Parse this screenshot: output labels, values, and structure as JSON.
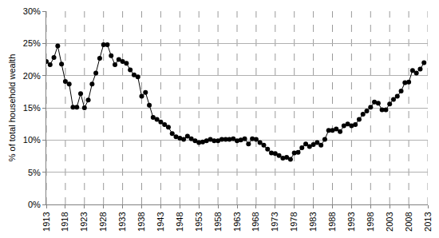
{
  "chart_data": {
    "type": "line",
    "y_label": "% of total household wealth",
    "x": [
      1913,
      1914,
      1915,
      1916,
      1917,
      1918,
      1919,
      1920,
      1921,
      1922,
      1923,
      1924,
      1925,
      1926,
      1927,
      1928,
      1929,
      1930,
      1931,
      1932,
      1933,
      1934,
      1935,
      1936,
      1937,
      1938,
      1939,
      1940,
      1941,
      1942,
      1943,
      1944,
      1945,
      1946,
      1947,
      1948,
      1949,
      1950,
      1951,
      1952,
      1953,
      1954,
      1955,
      1956,
      1957,
      1958,
      1959,
      1960,
      1961,
      1962,
      1963,
      1964,
      1965,
      1966,
      1967,
      1968,
      1969,
      1970,
      1971,
      1972,
      1973,
      1974,
      1975,
      1976,
      1977,
      1978,
      1979,
      1980,
      1981,
      1982,
      1983,
      1984,
      1985,
      1986,
      1987,
      1988,
      1989,
      1990,
      1991,
      1992,
      1993,
      1994,
      1995,
      1996,
      1997,
      1998,
      1999,
      2000,
      2001,
      2002,
      2003,
      2004,
      2005,
      2006,
      2007,
      2008,
      2009,
      2010,
      2011,
      2012
    ],
    "values": [
      22.2,
      21.7,
      22.8,
      24.6,
      21.8,
      19.1,
      18.7,
      15.1,
      15.1,
      17.2,
      15.0,
      16.2,
      18.7,
      20.4,
      22.7,
      24.8,
      24.8,
      23.1,
      21.7,
      22.5,
      22.2,
      21.9,
      20.9,
      20.1,
      19.8,
      16.8,
      17.4,
      15.4,
      13.5,
      13.2,
      12.8,
      12.4,
      12.0,
      11.0,
      10.5,
      10.3,
      10.1,
      10.6,
      10.2,
      9.9,
      9.6,
      9.7,
      9.9,
      10.1,
      9.9,
      9.9,
      10.1,
      10.1,
      10.1,
      10.2,
      9.9,
      10.0,
      10.2,
      9.4,
      10.2,
      10.1,
      9.6,
      9.2,
      8.6,
      8.0,
      7.9,
      7.6,
      7.2,
      7.3,
      7.0,
      8.0,
      8.1,
      8.8,
      9.4,
      9.0,
      9.3,
      9.6,
      9.2,
      10.1,
      11.5,
      11.5,
      11.7,
      11.3,
      12.2,
      12.5,
      12.2,
      12.4,
      13.2,
      14.0,
      14.5,
      15.1,
      15.9,
      15.7,
      14.7,
      14.7,
      15.6,
      16.3,
      16.8,
      17.6,
      18.9,
      19.0,
      20.8,
      20.4,
      21.0,
      22.0
    ],
    "color": "#000000",
    "marker": "circle",
    "line_style": "solid",
    "xlim": [
      1913,
      2013
    ],
    "xticks": [
      1913,
      1918,
      1923,
      1928,
      1933,
      1938,
      1943,
      1948,
      1953,
      1958,
      1963,
      1968,
      1973,
      1978,
      1983,
      1988,
      1993,
      1998,
      2003,
      2008,
      2013
    ],
    "ylim": [
      0,
      30
    ],
    "yticks": [
      {
        "value": 0,
        "label": "0%"
      },
      {
        "value": 5,
        "label": "5%"
      },
      {
        "value": 10,
        "label": "10%"
      },
      {
        "value": 15,
        "label": "15%"
      },
      {
        "value": 20,
        "label": "20%"
      },
      {
        "value": 25,
        "label": "25%"
      },
      {
        "value": 30,
        "label": "30%"
      }
    ],
    "grid": true
  }
}
